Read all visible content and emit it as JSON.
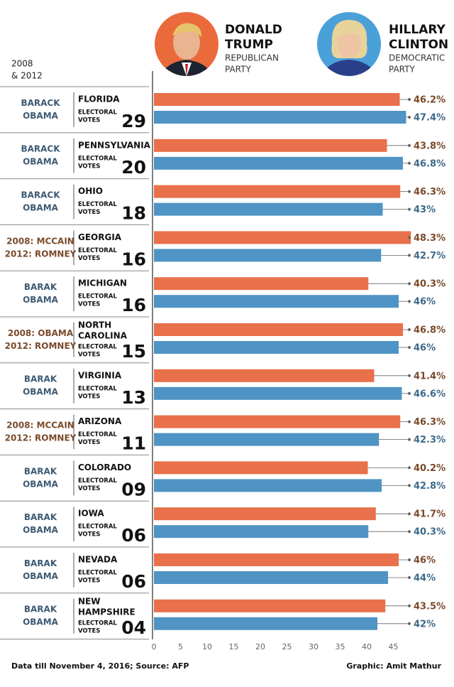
{
  "chart_data": {
    "type": "bar",
    "orientation": "horizontal",
    "header_lines": [
      "2008",
      "& 2012"
    ],
    "categories": [
      [
        "FLORIDA"
      ],
      [
        "PENNSYLVANIA"
      ],
      [
        "OHIO"
      ],
      [
        "GEORGIA"
      ],
      [
        "MICHIGAN"
      ],
      [
        "NORTH",
        "CAROLINA"
      ],
      [
        "VIRGINIA"
      ],
      [
        "ARIZONA"
      ],
      [
        "COLORADO"
      ],
      [
        "IOWA"
      ],
      [
        "NEVADA"
      ],
      [
        "NEW",
        "HAMPSHIRE"
      ]
    ],
    "electoral_label": [
      "ELECTORAL",
      "VOTES"
    ],
    "electoral_votes": [
      "29",
      "20",
      "18",
      "16",
      "16",
      "15",
      "13",
      "11",
      "09",
      "06",
      "06",
      "04"
    ],
    "prior_winner": [
      [
        "BARACK",
        "OBAMA"
      ],
      [
        "BARACK",
        "OBAMA"
      ],
      [
        "BARACK",
        "OBAMA"
      ],
      [
        "2008: MCCAIN",
        "2012: ROMNEY"
      ],
      [
        "BARAK",
        "OBAMA"
      ],
      [
        "2008: OBAMA",
        "2012: ROMNEY"
      ],
      [
        "BARAK",
        "OBAMA"
      ],
      [
        "2008: MCCAIN",
        "2012: ROMNEY"
      ],
      [
        "BARAK",
        "OBAMA"
      ],
      [
        "BARAK",
        "OBAMA"
      ],
      [
        "BARAK",
        "OBAMA"
      ],
      [
        "BARAK",
        "OBAMA"
      ]
    ],
    "prior_winner_colors": [
      "#3d5a73",
      "#3d5a73",
      "#3d5a73",
      "#7a4a2a",
      "#3d5a73",
      "#7a4a2a",
      "#3d5a73",
      "#7a4a2a",
      "#3d5a73",
      "#3d5a73",
      "#3d5a73",
      "#3d5a73"
    ],
    "series": [
      {
        "name": "DONALD TRUMP",
        "party": "REPUBLICAN PARTY",
        "color": "#e8704a",
        "label_color": "#7a4a2a",
        "values": [
          46.2,
          43.8,
          46.3,
          48.3,
          40.3,
          46.8,
          41.4,
          46.3,
          40.2,
          41.7,
          46,
          43.5
        ],
        "value_labels": [
          "46.2%",
          "43.8%",
          "46.3%",
          "48.3%",
          "40.3%",
          "46.8%",
          "41.4%",
          "46.3%",
          "40.2%",
          "41.7%",
          "46%",
          "43.5%"
        ]
      },
      {
        "name": "HILLARY CLINTON",
        "party": "DEMOCRATIC PARTY",
        "color": "#4f94c4",
        "label_color": "#3d6a8a",
        "values": [
          47.4,
          46.8,
          43,
          42.7,
          46,
          46,
          46.6,
          42.3,
          42.8,
          40.3,
          44,
          42
        ],
        "value_labels": [
          "47.4%",
          "46.8%",
          "43%",
          "42.7%",
          "46%",
          "46%",
          "46.6%",
          "42.3%",
          "42.8%",
          "40.3%",
          "44%",
          "42%"
        ]
      }
    ],
    "xlim": [
      0,
      50
    ],
    "xticks": [
      0,
      5,
      10,
      15,
      20,
      25,
      30,
      35,
      40,
      45
    ],
    "source": "Data till November 4, 2016; Source: AFP",
    "credit": "Graphic: Amit Mathur"
  }
}
